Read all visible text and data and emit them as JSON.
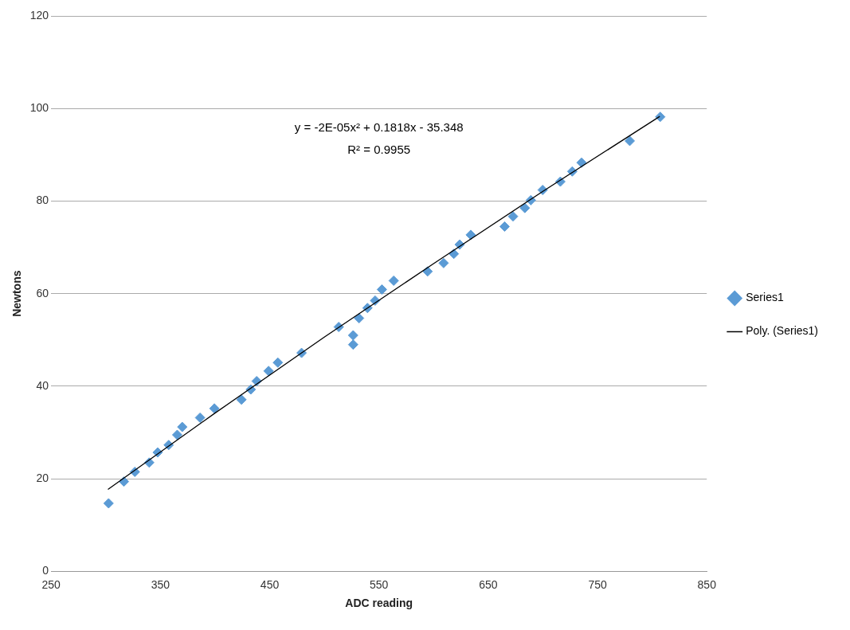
{
  "chart_data": {
    "type": "scatter",
    "xlabel": "ADC reading",
    "ylabel": "Newtons",
    "xlim": [
      250,
      850
    ],
    "xticks": [
      250,
      350,
      450,
      550,
      650,
      750,
      850
    ],
    "ylim": [
      0,
      120
    ],
    "yticks": [
      0,
      20,
      40,
      60,
      80,
      100,
      120
    ],
    "grid": "y",
    "legend": "right",
    "marker": "diamond",
    "annotations": [
      "y = -2E-05x² + 0.1818x - 35.348",
      "R² = 0.9955"
    ],
    "series": [
      {
        "name": "Series1",
        "color": "#5b9bd5",
        "x": [
          302.6,
          316.6,
          326.6,
          339.8,
          347.5,
          357.6,
          365.4,
          370,
          386.3,
          399.4,
          424.2,
          432.7,
          438.1,
          449,
          457.5,
          479.2,
          513.2,
          526.4,
          526.4,
          531.8,
          539.5,
          546.5,
          552.7,
          563.5,
          594.5,
          609.2,
          618.5,
          623.9,
          634,
          665,
          672.7,
          683.5,
          689,
          699.8,
          716,
          726.9,
          735.4,
          779.5,
          807.4
        ],
        "values": [
          14.7,
          19.4,
          21.5,
          23.5,
          25.7,
          27.3,
          29.5,
          31.2,
          33.2,
          35.2,
          37.1,
          39.3,
          41.1,
          43.3,
          45.1,
          47.2,
          52.8,
          51,
          49,
          54.7,
          56.9,
          58.5,
          60.9,
          62.8,
          64.8,
          66.6,
          68.6,
          70.6,
          72.7,
          74.5,
          76.7,
          78.5,
          80.2,
          82.4,
          84.2,
          86.4,
          88.3,
          93,
          98.2
        ]
      },
      {
        "name": "Poly. (Series1)",
        "type": "line",
        "color": "#000000",
        "marker": "none",
        "line_style": "solid",
        "x": [
          302,
          400,
          500,
          600,
          700,
          807
        ],
        "values": [
          17.7,
          34.2,
          50.6,
          66.5,
          82.1,
          98.3
        ]
      }
    ]
  }
}
